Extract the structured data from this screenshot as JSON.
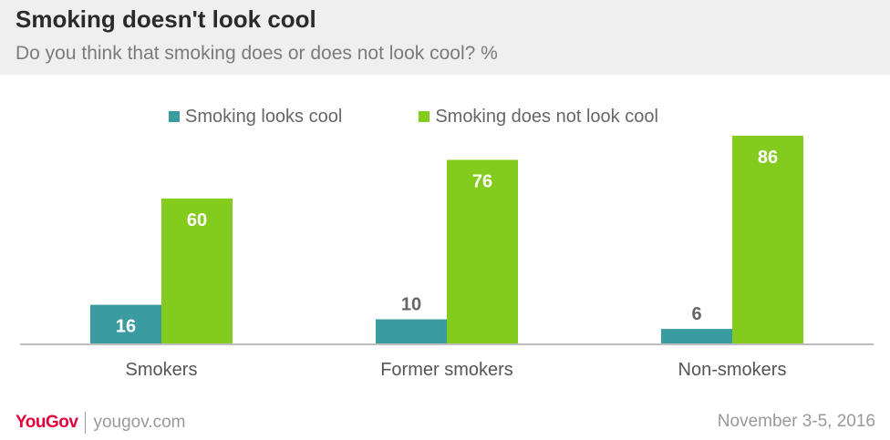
{
  "header": {
    "title": "Smoking doesn't look cool",
    "subtitle": "Do you think that smoking does or does not look cool? %"
  },
  "footer": {
    "logo": "YouGov",
    "site": "yougov.com",
    "date": "November 3-5, 2016"
  },
  "colors": {
    "series1": "#3a9ba0",
    "series2": "#83cc1e",
    "brand": "#e4003b"
  },
  "chart_data": {
    "type": "bar",
    "title": "Smoking doesn't look cool",
    "subtitle": "Do you think that smoking does or does not look cool? %",
    "categories": [
      "Smokers",
      "Former smokers",
      "Non-smokers"
    ],
    "series": [
      {
        "name": "Smoking looks cool",
        "values": [
          16,
          10,
          6
        ],
        "color": "#3a9ba0"
      },
      {
        "name": "Smoking does not look cool",
        "values": [
          60,
          76,
          86
        ],
        "color": "#83cc1e"
      }
    ],
    "ylim": [
      0,
      86
    ],
    "grid": false,
    "legend": "top"
  }
}
